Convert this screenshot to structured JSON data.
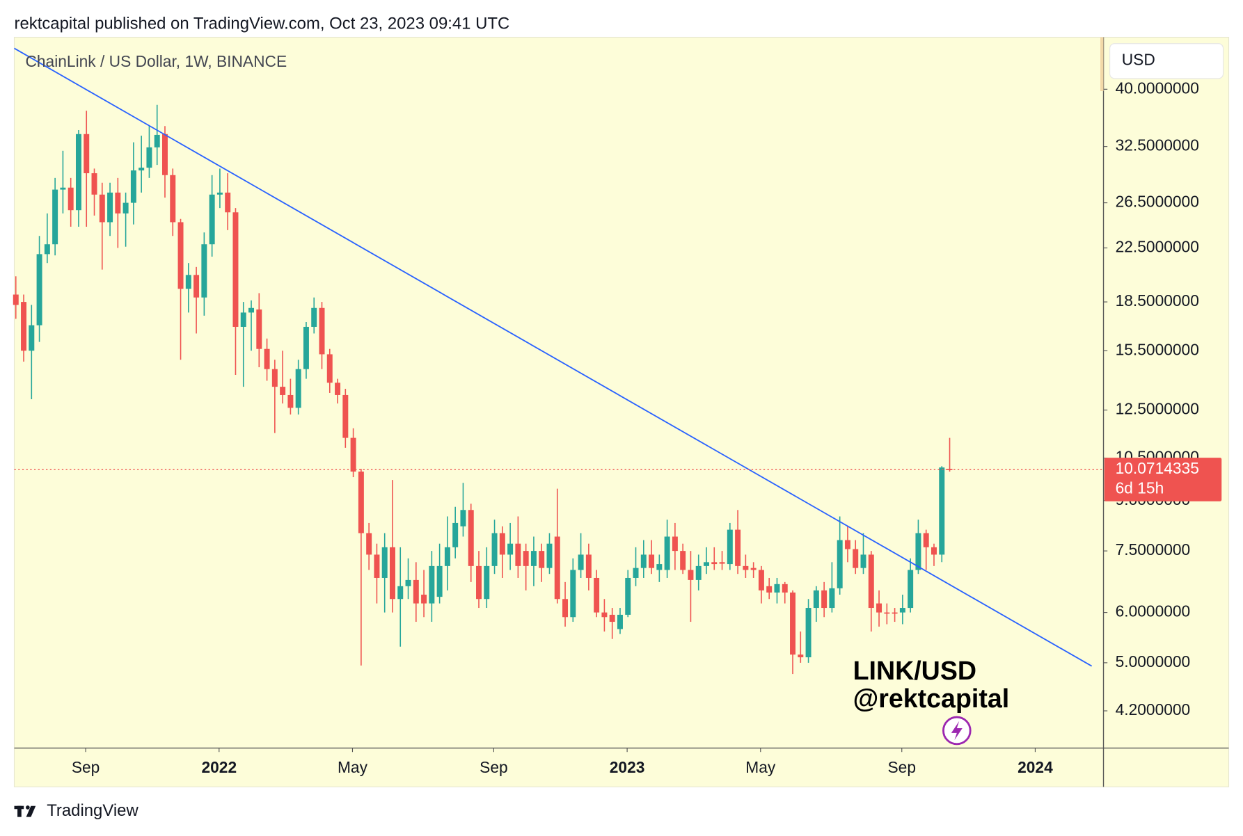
{
  "header": "rektcapital published on TradingView.com, Oct 23, 2023 09:41 UTC",
  "footer": "TradingView",
  "chart_data": {
    "type": "candlestick",
    "title": "ChainLink / US Dollar, 1W, BINANCE",
    "currency": "USD",
    "annotations": [
      "LINK/USD",
      "@rektcapital"
    ],
    "countdown": "6d 15h",
    "log_scale": true,
    "grid": false,
    "up_color": "#26a69a",
    "down_color": "#ef5350",
    "xlim": [
      -0.2,
      138.6
    ],
    "xticks": [
      {
        "value": 8.9,
        "label": "Sep"
      },
      {
        "value": 25.9,
        "label": "2022",
        "bold": true
      },
      {
        "value": 42.9,
        "label": "May"
      },
      {
        "value": 60.9,
        "label": "Sep"
      },
      {
        "value": 77.9,
        "label": "2023",
        "bold": true
      },
      {
        "value": 94.9,
        "label": "May"
      },
      {
        "value": 112.9,
        "label": "Sep"
      },
      {
        "value": 129.9,
        "label": "2024",
        "bold": true
      }
    ],
    "ylim": [
      3.67,
      48.3
    ],
    "yticks": [
      {
        "value": 40,
        "label": "40.0000000"
      },
      {
        "value": 32.5,
        "label": "32.5000000"
      },
      {
        "value": 26.5,
        "label": "26.5000000"
      },
      {
        "value": 22.5,
        "label": "22.5000000"
      },
      {
        "value": 18.5,
        "label": "18.5000000"
      },
      {
        "value": 15.5,
        "label": "15.5000000"
      },
      {
        "value": 12.5,
        "label": "12.5000000"
      },
      {
        "value": 10.5,
        "label": "10.5000000"
      },
      {
        "value": 9,
        "label": "9.0000000"
      },
      {
        "value": 7.5,
        "label": "7.5000000"
      },
      {
        "value": 6,
        "label": "6.0000000"
      },
      {
        "value": 5,
        "label": "5.0000000"
      },
      {
        "value": 4.2,
        "label": "4.2000000"
      }
    ],
    "trendline": {
      "x": [
        -0.2,
        137.1
      ],
      "y": [
        46.4,
        4.94
      ],
      "color": "#2962ff"
    },
    "open": [
      19.0,
      18.5,
      15.5,
      17.0,
      22,
      22.8,
      27.8,
      28,
      25.8,
      34,
      29.5,
      27.3,
      24.7,
      27.5,
      25.5,
      26.5,
      29.8,
      30.1,
      32.4,
      34,
      29.3,
      24.7,
      19.4,
      20.4,
      18.8,
      22.8,
      27.3,
      27.5,
      25.6,
      16.9,
      17.8,
      18,
      15.6,
      14.5,
      13.6,
      13.2,
      12.6,
      14.5,
      16.9,
      18.1,
      15.3,
      13.8,
      13.2,
      11.3,
      10,
      8,
      7.4,
      6.8,
      7.6,
      6.3,
      6.6,
      6.75,
      6.4,
      6.2,
      6.35,
      7.1,
      7.6,
      8.2,
      8.7,
      7.1,
      6.3,
      7.1,
      8.0,
      7.4,
      7.7,
      7.5,
      7.1,
      7.5,
      7.05,
      7.9,
      6.3,
      5.9,
      7.0,
      7.4,
      6.8,
      6.0,
      5.95,
      5.65,
      5.95,
      6.8,
      7.05,
      7.4,
      7.0,
      7.0,
      7.9,
      7.5,
      7.0,
      6.75,
      7.1,
      7.2,
      7.2,
      7.15,
      8.1,
      7.1,
      7.05,
      7.0,
      6.6,
      6.45,
      6.65,
      6.45,
      5.15,
      5.1,
      6.1,
      6.5,
      6.1,
      6.55,
      7.8,
      7.55,
      7.05,
      7.4,
      6.2,
      6.0,
      6.0,
      6.0,
      6.1,
      7.0,
      8.0,
      7.6,
      7.4,
      10.1
    ],
    "high": [
      20.3,
      19,
      18.3,
      23.5,
      25.5,
      29,
      32,
      29,
      34.5,
      37,
      30,
      28.5,
      28.5,
      29,
      27.5,
      33,
      33.8,
      35,
      37.8,
      35,
      30,
      25,
      21.3,
      21,
      23.8,
      29.3,
      30,
      29.5,
      26,
      18.5,
      18.6,
      19.1,
      16.2,
      15,
      15.5,
      14,
      15,
      17.2,
      18.8,
      18.5,
      15.6,
      14,
      13.5,
      11.7,
      10.1,
      8.3,
      7.7,
      8,
      9.7,
      7.6,
      7.3,
      7.2,
      7.0,
      7.5,
      7.7,
      8.5,
      8.8,
      9.6,
      8.9,
      7.5,
      7.6,
      8.4,
      8.2,
      8.3,
      8.5,
      7.7,
      7.9,
      7.7,
      8.0,
      9.4,
      6.7,
      7.3,
      8.0,
      7.7,
      7.0,
      6.3,
      6.1,
      6.1,
      7.0,
      7.6,
      7.8,
      7.8,
      7.4,
      8.4,
      8.3,
      7.7,
      7.5,
      7.4,
      7.6,
      7.6,
      7.5,
      8.3,
      8.7,
      7.4,
      7.2,
      7.1,
      6.8,
      6.8,
      6.7,
      6.5,
      5.6,
      6.3,
      6.6,
      6.7,
      7.2,
      8.5,
      8.2,
      7.8,
      8.0,
      7.5,
      6.5,
      6.2,
      6.1,
      6.4,
      7.3,
      8.4,
      8.1,
      7.7,
      10.2,
      11.3
    ],
    "low": [
      17.4,
      14.9,
      13.0,
      16.0,
      21.3,
      21.9,
      25.5,
      24.3,
      24.3,
      24.3,
      25.3,
      20.8,
      23.5,
      22.5,
      22.6,
      24.5,
      27.5,
      29,
      30.4,
      27,
      23.5,
      15.0,
      17.8,
      16.5,
      17.6,
      21.8,
      26,
      24,
      14.2,
      13.6,
      15.5,
      14.6,
      13.9,
      11.5,
      12.8,
      12.3,
      12.3,
      14,
      16.5,
      14.5,
      13.3,
      12.8,
      10.9,
      9.8,
      4.95,
      7.0,
      6.2,
      6.0,
      6.0,
      5.3,
      6.3,
      5.8,
      5.9,
      5.8,
      6.2,
      6.5,
      7.3,
      7.9,
      6.7,
      6.1,
      6.1,
      6.9,
      6.8,
      7.0,
      6.8,
      6.5,
      6.6,
      6.7,
      6.9,
      6.2,
      5.7,
      5.8,
      6.8,
      6.5,
      5.9,
      5.6,
      5.45,
      5.55,
      5.9,
      6.6,
      6.8,
      6.9,
      6.7,
      6.8,
      7.0,
      6.9,
      5.8,
      6.5,
      6.9,
      7.0,
      7.0,
      7.0,
      6.9,
      6.8,
      6.8,
      6.2,
      6.3,
      6.2,
      6.2,
      4.8,
      5.0,
      5.0,
      5.8,
      5.9,
      6.0,
      6.4,
      7.2,
      6.9,
      6.9,
      5.6,
      5.7,
      5.75,
      5.8,
      5.75,
      6.0,
      6.9,
      7.0,
      7.1,
      7.2,
      10.0
    ],
    "close": [
      18.3,
      15.5,
      17.0,
      22,
      22.8,
      27.8,
      28,
      25.8,
      34,
      29.5,
      27.3,
      24.7,
      27.5,
      25.5,
      26.5,
      29.8,
      30.1,
      32.4,
      33.9,
      29.3,
      24.7,
      19.4,
      20.4,
      18.8,
      22.8,
      27.3,
      27.5,
      25.6,
      16.9,
      17.8,
      18.1,
      15.6,
      14.5,
      13.6,
      13.2,
      12.6,
      14.5,
      16.9,
      18.1,
      15.3,
      13.8,
      13.2,
      11.3,
      10.0,
      8.0,
      7.4,
      6.8,
      7.6,
      6.3,
      6.6,
      6.75,
      6.2,
      6.2,
      7.1,
      7.1,
      7.6,
      8.3,
      8.7,
      7.1,
      6.3,
      7.1,
      8.0,
      7.4,
      7.7,
      7.1,
      7.1,
      7.5,
      7.05,
      7.7,
      6.3,
      5.9,
      7.0,
      7.4,
      6.8,
      6.0,
      5.9,
      5.8,
      5.95,
      6.8,
      7.05,
      7.4,
      7.05,
      7.15,
      7.9,
      7.5,
      7.0,
      6.75,
      7.1,
      7.2,
      7.15,
      7.16,
      8.1,
      7.1,
      7.0,
      7.0,
      6.5,
      6.45,
      6.65,
      6.45,
      5.15,
      5.1,
      6.1,
      6.5,
      6.1,
      6.55,
      7.8,
      7.55,
      7.05,
      7.4,
      6.1,
      6.0,
      5.98,
      5.98,
      6.1,
      7.0,
      8.0,
      7.6,
      7.4,
      10.15,
      10.0714335
    ]
  }
}
